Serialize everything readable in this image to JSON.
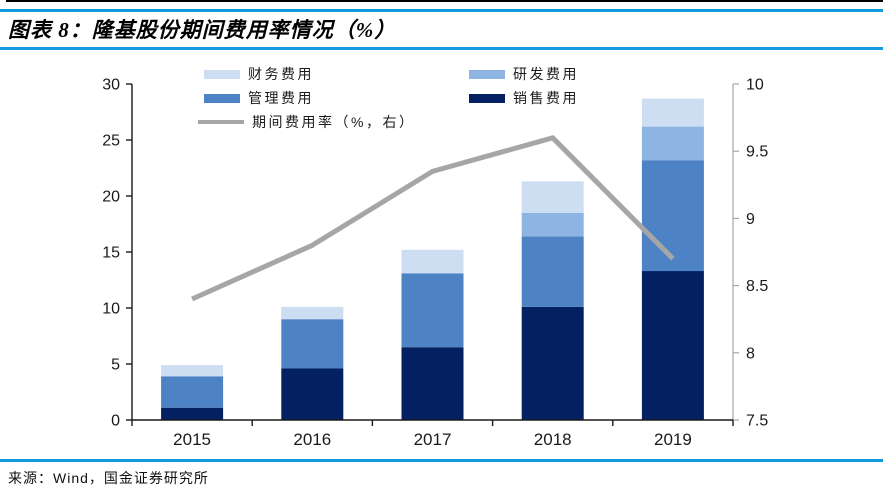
{
  "header": {
    "title": "图表 8：隆基股份期间费用率情况（%）"
  },
  "footer": {
    "source": "来源：Wind，国金证券研究所"
  },
  "colors": {
    "rule_blue": "#149bdf",
    "axis_black": "#1a1a1a",
    "right_axis_gray": "#a6a6a6",
    "label_color": "#1a1a1a"
  },
  "chart_data": {
    "type": "bar",
    "subtype": "stacked-bars-with-right-axis-line",
    "title": "隆基股份期间费用率情况（%）",
    "categories": [
      "2015",
      "2016",
      "2017",
      "2018",
      "2019"
    ],
    "series": [
      {
        "name": "销售费用",
        "type": "bar",
        "color": "#032160",
        "values": [
          1.1,
          4.6,
          6.5,
          10.1,
          13.3
        ]
      },
      {
        "name": "管理费用",
        "type": "bar",
        "color": "#4d82c4",
        "values": [
          2.8,
          4.4,
          6.6,
          6.3,
          9.9
        ]
      },
      {
        "name": "研发费用",
        "type": "bar",
        "color": "#8eb4e3",
        "values": [
          0,
          0,
          0,
          2.1,
          3.0
        ]
      },
      {
        "name": "财务费用",
        "type": "bar",
        "color": "#cdddf2",
        "values": [
          1.0,
          1.1,
          2.1,
          2.8,
          2.5
        ]
      },
      {
        "name": "期间费用率（%，右）",
        "type": "line",
        "axis": "right",
        "color": "#a6a6a6",
        "values": [
          8.4,
          8.8,
          9.35,
          9.6,
          8.7
        ]
      }
    ],
    "left_axis": {
      "min": 0,
      "max": 30,
      "ticks": [
        0,
        5,
        10,
        15,
        20,
        25,
        30
      ]
    },
    "right_axis": {
      "min": 7.5,
      "max": 10,
      "ticks": [
        7.5,
        8,
        8.5,
        9,
        9.5,
        10
      ]
    },
    "grid": false,
    "legend": {
      "position": "top",
      "items": [
        {
          "label": "财务费用",
          "swatch": "box",
          "color": "#cdddf2"
        },
        {
          "label": "研发费用",
          "swatch": "box",
          "color": "#8eb4e3"
        },
        {
          "label": "管理费用",
          "swatch": "box",
          "color": "#4d82c4"
        },
        {
          "label": "销售费用",
          "swatch": "box",
          "color": "#032160"
        },
        {
          "label": "期间费用率（%，右）",
          "swatch": "line",
          "color": "#a6a6a6"
        }
      ]
    }
  }
}
